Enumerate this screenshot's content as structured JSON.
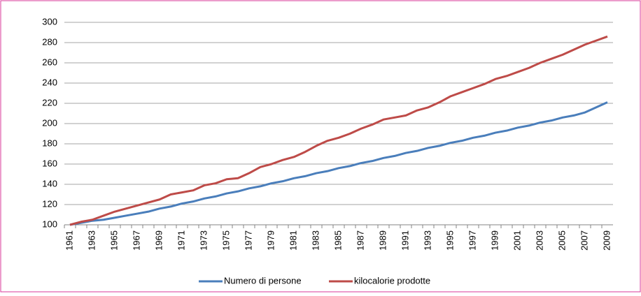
{
  "chart_data": {
    "type": "line",
    "categories": [
      "1961",
      null,
      "1963",
      null,
      "1965",
      null,
      "1967",
      null,
      "1969",
      null,
      "1971",
      null,
      "1973",
      null,
      "1975",
      null,
      "1977",
      null,
      "1979",
      null,
      "1981",
      null,
      "1983",
      null,
      "1985",
      null,
      "1987",
      null,
      "1989",
      null,
      "1991",
      null,
      "1993",
      null,
      "1995",
      null,
      "1997",
      null,
      "1999",
      null,
      "2001",
      null,
      "2003",
      null,
      "2005",
      null,
      "2007",
      null,
      "2009"
    ],
    "series": [
      {
        "name": "Numero di persone",
        "color": "#4a7ebb",
        "values": [
          100,
          102,
          104,
          105,
          107,
          109,
          111,
          113,
          116,
          118,
          121,
          123,
          126,
          128,
          131,
          133,
          136,
          138,
          141,
          143,
          146,
          148,
          151,
          153,
          156,
          158,
          161,
          163,
          166,
          168,
          171,
          173,
          176,
          178,
          181,
          183,
          186,
          188,
          191,
          193,
          196,
          198,
          201,
          203,
          206,
          208,
          211,
          216,
          221
        ]
      },
      {
        "name": "kilocalorie prodotte",
        "color": "#be4b48",
        "values": [
          100,
          103,
          105,
          109,
          113,
          116,
          119,
          122,
          125,
          130,
          132,
          134,
          139,
          141,
          145,
          146,
          151,
          157,
          160,
          164,
          167,
          172,
          178,
          183,
          186,
          190,
          195,
          199,
          204,
          206,
          208,
          213,
          216,
          221,
          227,
          231,
          235,
          239,
          244,
          247,
          251,
          255,
          260,
          264,
          268,
          273,
          278,
          282,
          286
        ]
      }
    ],
    "ylim": [
      100,
      300
    ],
    "yticks": [
      100,
      120,
      140,
      160,
      180,
      200,
      220,
      240,
      260,
      280,
      300
    ],
    "grid": true,
    "legend": "bottom"
  }
}
